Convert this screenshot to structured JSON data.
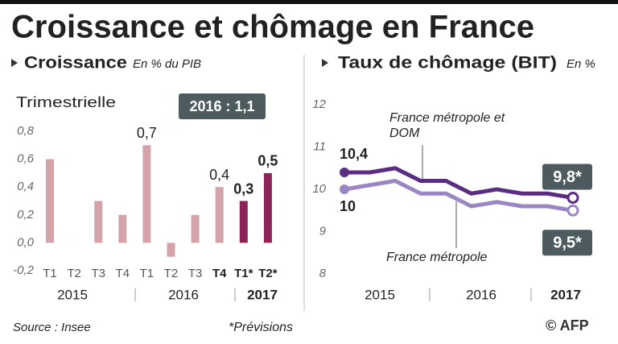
{
  "title": "Croissance et chômage en France",
  "source": "Source : Insee",
  "note": "*Prévisions",
  "credit": "© AFP",
  "chart_data": [
    {
      "type": "bar",
      "title": "Croissance",
      "unit": "En % du PIB",
      "subtitle": "Trimestrielle",
      "badge": "2016 : 1,1",
      "categories": [
        "T1",
        "T2",
        "T3",
        "T4",
        "T1",
        "T2",
        "T3",
        "T4",
        "T1*",
        "T2*"
      ],
      "groups": [
        "2015",
        "2016",
        "2017"
      ],
      "values": [
        0.6,
        0,
        0.3,
        0.2,
        0.7,
        -0.1,
        0.2,
        0.4,
        0.3,
        0.5
      ],
      "value_labels": [
        null,
        null,
        null,
        null,
        "0,7",
        null,
        null,
        "0,4",
        "0,3",
        "0,5"
      ],
      "colors": [
        "#d2a4a9",
        "#d2a4a9",
        "#d2a4a9",
        "#d2a4a9",
        "#d2a4a9",
        "#d2a4a9",
        "#d2a4a9",
        "#d2a4a9",
        "#8c2459",
        "#8c2459"
      ],
      "ylim": [
        -0.2,
        0.8
      ],
      "yticks": [
        {
          "value": -0.2,
          "label": "-0,2"
        },
        {
          "value": 0,
          "label": "0,0"
        },
        {
          "value": 0.2,
          "label": "0,2"
        },
        {
          "value": 0.4,
          "label": "0,4"
        },
        {
          "value": 0.6,
          "label": "0,6"
        },
        {
          "value": 0.8,
          "label": "0,8"
        }
      ],
      "grid": false
    },
    {
      "type": "line",
      "title": "Taux de chômage (BIT)",
      "unit": "En %",
      "categories": [
        null,
        null,
        null,
        null,
        null,
        null,
        null,
        null,
        null,
        null
      ],
      "groups": [
        "2015",
        "2016",
        "2017"
      ],
      "series": [
        {
          "name": "France métropole et DOM",
          "color": "#5b2d82",
          "values": [
            10.4,
            10.4,
            10.5,
            10.2,
            10.2,
            9.9,
            10.0,
            9.9,
            9.9,
            9.8
          ],
          "value_labels": [
            "10,4",
            null,
            null,
            null,
            null,
            null,
            null,
            null,
            null,
            "9,8*"
          ]
        },
        {
          "name": "France métropole",
          "color": "#9b86c4",
          "values": [
            10.0,
            10.1,
            10.2,
            9.9,
            9.9,
            9.6,
            9.7,
            9.6,
            9.6,
            9.5
          ],
          "value_labels": [
            "10",
            null,
            null,
            null,
            null,
            null,
            null,
            null,
            null,
            "9,5*"
          ]
        }
      ],
      "ylim": [
        8,
        12
      ],
      "yticks": [
        8,
        9,
        10,
        11,
        12
      ],
      "grid": false
    }
  ]
}
